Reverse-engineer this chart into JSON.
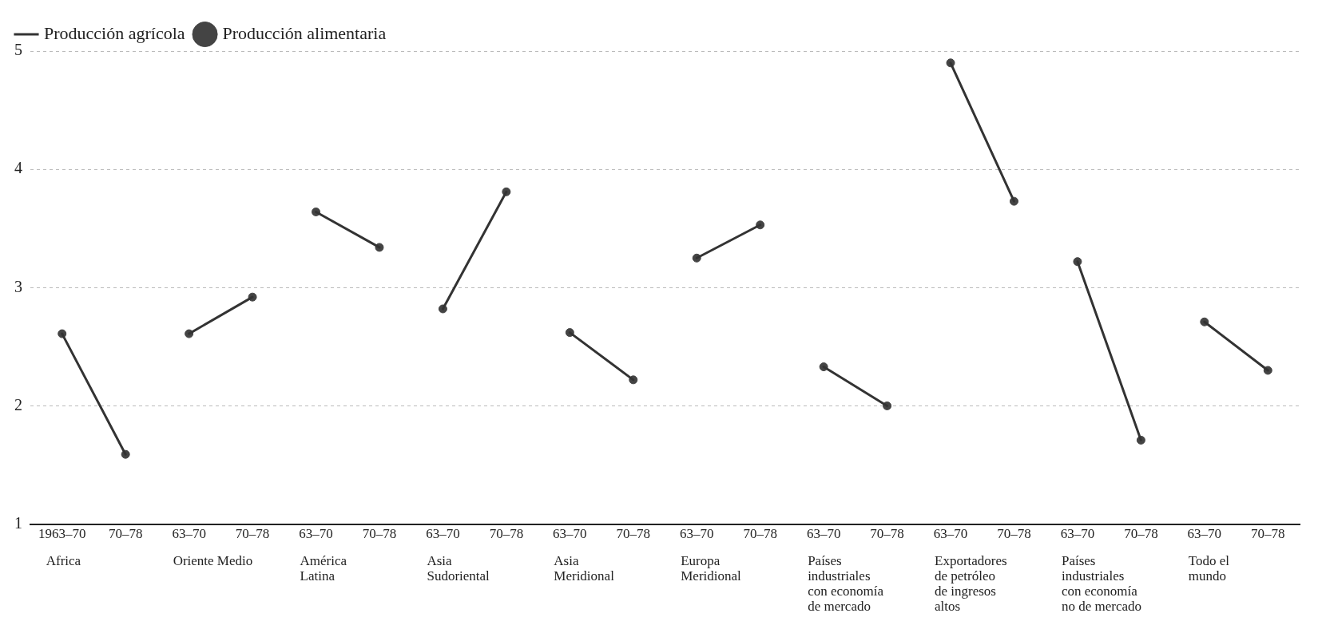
{
  "chart_data": {
    "type": "line",
    "categories": [
      "1963–70",
      "70–78",
      "63–70",
      "70–78",
      "63–70",
      "70–78",
      "63–70",
      "70–78",
      "63–70",
      "70–78",
      "63–70",
      "70–78",
      "63–70",
      "70–78",
      "63–70",
      "70–78",
      "63–70",
      "70–78",
      "63–70",
      "70–78"
    ],
    "series": [
      {
        "name": "Producción agrícola",
        "marker": "none",
        "color": "#333333",
        "values": [
          2.61,
          1.59,
          2.61,
          2.92,
          3.64,
          3.34,
          2.82,
          3.81,
          2.62,
          2.22,
          3.25,
          3.53,
          2.33,
          2.0,
          4.9,
          3.73,
          3.22,
          1.71,
          2.71,
          2.3
        ]
      },
      {
        "name": "Producción alimentaria",
        "type": "scatter",
        "marker": "circle",
        "color": "#444444",
        "values": [
          2.61,
          1.59,
          2.61,
          2.92,
          3.64,
          3.34,
          2.82,
          3.81,
          2.62,
          2.22,
          3.25,
          3.53,
          2.33,
          2.0,
          4.9,
          3.73,
          3.22,
          1.71,
          2.71,
          2.3
        ]
      }
    ],
    "annotations": [
      "Africa",
      "Oriente Medio",
      "América\nLatina",
      "Asia\nSudoriental",
      "Asia\nMeridional",
      "Europa\nMeridional",
      "Países\nindustriales\ncon economía\nde mercado",
      "Exportadores\nde petróleo\nde ingresos\naltos",
      "Países\nindustriales\ncon economía\nno de mercado",
      "Todo el\nmundo"
    ],
    "ylim": [
      1,
      5
    ],
    "yticks": [
      1,
      2,
      3,
      4,
      5
    ],
    "grid": "y",
    "legend": "top left"
  }
}
